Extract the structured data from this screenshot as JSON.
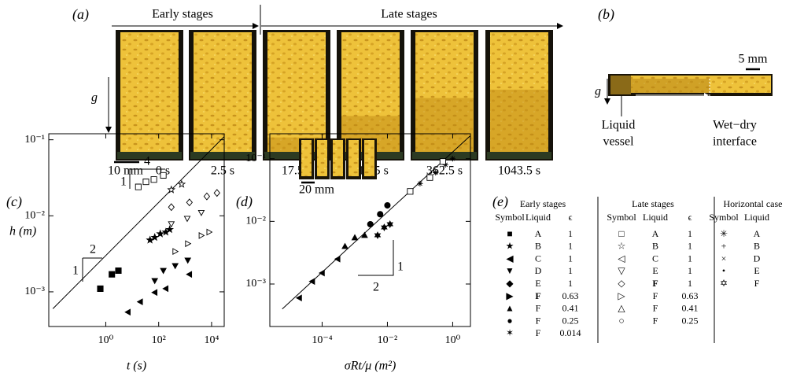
{
  "panel_labels": [
    "(a)",
    "(b)",
    "(c)",
    "(d)",
    "(e)"
  ],
  "panel_a": {
    "early": "Early stages",
    "late": "Late stages",
    "gravity": "g",
    "scale_bar": "10 mm",
    "times": [
      "0 s",
      "2.5 s",
      "17.5 s",
      "115.5 s",
      "362.5 s",
      "1043.5 s"
    ]
  },
  "panel_b": {
    "scale_bar": "5 mm",
    "gravity": "g",
    "vessel": [
      "Liquid",
      "vessel"
    ],
    "interface": [
      "Wet−dry",
      "interface"
    ]
  },
  "chart_data": [
    {
      "type": "scatter",
      "x_label": "t (s)",
      "y_label": "h (m)",
      "log_x": true,
      "log_y": true,
      "color": "#000000",
      "xlim": [
        0.007,
        30000
      ],
      "ylim": [
        0.00035,
        0.12
      ],
      "xticks": [
        {
          "value": 1,
          "label": "10⁰"
        },
        {
          "value": 100,
          "label": "10²"
        },
        {
          "value": 10000,
          "label": "10⁴"
        }
      ],
      "yticks": [
        {
          "value": 0.001,
          "label": "10⁻³"
        },
        {
          "value": 0.01,
          "label": "10⁻²"
        },
        {
          "value": 0.1,
          "label": "10⁻¹"
        }
      ],
      "fit_line": {
        "x": [
          0.01,
          30000
        ],
        "values": [
          0.0006,
          0.11
        ]
      },
      "slope_labels": [
        "1",
        "2",
        "1",
        "4"
      ],
      "series": [
        {
          "marker": "square",
          "filled": true,
          "x": [
            0.62,
            1.7,
            3.0
          ],
          "values": [
            0.0011,
            0.0017,
            0.0019
          ]
        },
        {
          "marker": "star",
          "filled": true,
          "x": [
            47,
            71,
            115,
            186,
            260
          ],
          "values": [
            0.0048,
            0.0052,
            0.0058,
            0.0061,
            0.0066
          ]
        },
        {
          "marker": "tri-left",
          "filled": true,
          "x": [
            6.9,
            20,
            71,
            186,
            1450
          ],
          "values": [
            0.00054,
            0.00074,
            0.00098,
            0.0011,
            0.0017
          ]
        },
        {
          "marker": "tri-down",
          "filled": true,
          "x": [
            71,
            150,
            420,
            1260
          ],
          "values": [
            0.0014,
            0.0019,
            0.0022,
            0.0026
          ]
        },
        {
          "marker": "square",
          "filled": false,
          "x": [
            17,
            33,
            66,
            150
          ],
          "values": [
            0.024,
            0.028,
            0.03,
            0.034
          ]
        },
        {
          "marker": "star",
          "filled": false,
          "x": [
            300,
            740
          ],
          "values": [
            0.022,
            0.026
          ]
        },
        {
          "marker": "diamond",
          "filled": false,
          "x": [
            300,
            1450,
            6600,
            16000
          ],
          "values": [
            0.013,
            0.015,
            0.018,
            0.02
          ]
        },
        {
          "marker": "tri-down",
          "filled": false,
          "x": [
            300,
            1200,
            4100
          ],
          "values": [
            0.0078,
            0.0092,
            0.011
          ]
        },
        {
          "marker": "tri-right",
          "filled": false,
          "x": [
            420,
            1260,
            4100,
            8100
          ],
          "values": [
            0.0034,
            0.0043,
            0.0055,
            0.0061
          ]
        }
      ]
    },
    {
      "type": "scatter",
      "x_label": "σRt/μ (m²)",
      "log_x": true,
      "log_y": true,
      "color": "#000000",
      "xlim": [
        2.5e-06,
        3.5
      ],
      "ylim": [
        0.00021,
        0.25
      ],
      "xticks": [
        {
          "value": 0.0001,
          "label": "10⁻⁴"
        },
        {
          "value": 0.01,
          "label": "10⁻²"
        },
        {
          "value": 1,
          "label": "10⁰"
        }
      ],
      "yticks": [
        {
          "value": 0.001,
          "label": "10⁻³"
        },
        {
          "value": 0.01,
          "label": "10⁻²"
        },
        {
          "value": 0.1,
          "label": "10⁻¹"
        }
      ],
      "fit_line": {
        "x": [
          6e-06,
          3.4
        ],
        "values": [
          0.0004,
          0.23
        ]
      },
      "slope_labels": [
        "1",
        "2"
      ],
      "inset_scale": "20 mm",
      "series": [
        {
          "marker": "tri-left",
          "filled": true,
          "x": [
            2e-05,
            5e-05,
            0.0001,
            0.0003
          ],
          "values": [
            0.0006,
            0.0011,
            0.0015,
            0.0025
          ]
        },
        {
          "marker": "tri-up",
          "filled": true,
          "x": [
            0.0005,
            0.001,
            0.002
          ],
          "values": [
            0.004,
            0.0055,
            0.006
          ]
        },
        {
          "marker": "circle",
          "filled": true,
          "x": [
            0.003,
            0.006,
            0.01
          ],
          "values": [
            0.009,
            0.013,
            0.018
          ]
        },
        {
          "marker": "hexstar",
          "filled": true,
          "x": [
            0.005,
            0.008,
            0.012
          ],
          "values": [
            0.006,
            0.008,
            0.009
          ]
        },
        {
          "marker": "asterisk",
          "filled": false,
          "x": [
            0.1,
            0.3,
            0.6,
            1.0
          ],
          "values": [
            0.04,
            0.06,
            0.08,
            0.1
          ]
        },
        {
          "marker": "square",
          "filled": false,
          "x": [
            0.05,
            0.2,
            0.5
          ],
          "values": [
            0.03,
            0.05,
            0.09
          ]
        }
      ]
    }
  ],
  "panel_e": {
    "groups": [
      {
        "title": "Early stages",
        "columns": [
          "Symbol",
          "Liquid",
          "ϵ"
        ],
        "bold_row": 5,
        "rows": [
          [
            "■",
            "A",
            1
          ],
          [
            "★",
            "B",
            1
          ],
          [
            "◀",
            "C",
            1
          ],
          [
            "▼",
            "D",
            1
          ],
          [
            "◆",
            "E",
            1
          ],
          [
            "▶",
            "F",
            0.63
          ],
          [
            "▲",
            "F",
            0.41
          ],
          [
            "●",
            "F",
            0.25
          ],
          [
            "✶",
            "F",
            0.014
          ]
        ]
      },
      {
        "title": "Late stages",
        "columns": [
          "Symbol",
          "Liquid",
          "ϵ"
        ],
        "bold_row": 4,
        "rows": [
          [
            "□",
            "A",
            1
          ],
          [
            "☆",
            "B",
            1
          ],
          [
            "◁",
            "C",
            1
          ],
          [
            "▽",
            "E",
            1
          ],
          [
            "◇",
            "F",
            1
          ],
          [
            "▷",
            "F",
            0.63
          ],
          [
            "△",
            "F",
            0.41
          ],
          [
            "○",
            "F",
            0.25
          ]
        ]
      },
      {
        "title": "Horizontal case",
        "columns": [
          "Symbol",
          "Liquid"
        ],
        "rows": [
          [
            "✳",
            "A"
          ],
          [
            "+",
            "B"
          ],
          [
            "×",
            "D"
          ],
          [
            "•",
            "E"
          ],
          [
            "✡",
            "F"
          ]
        ]
      }
    ]
  }
}
